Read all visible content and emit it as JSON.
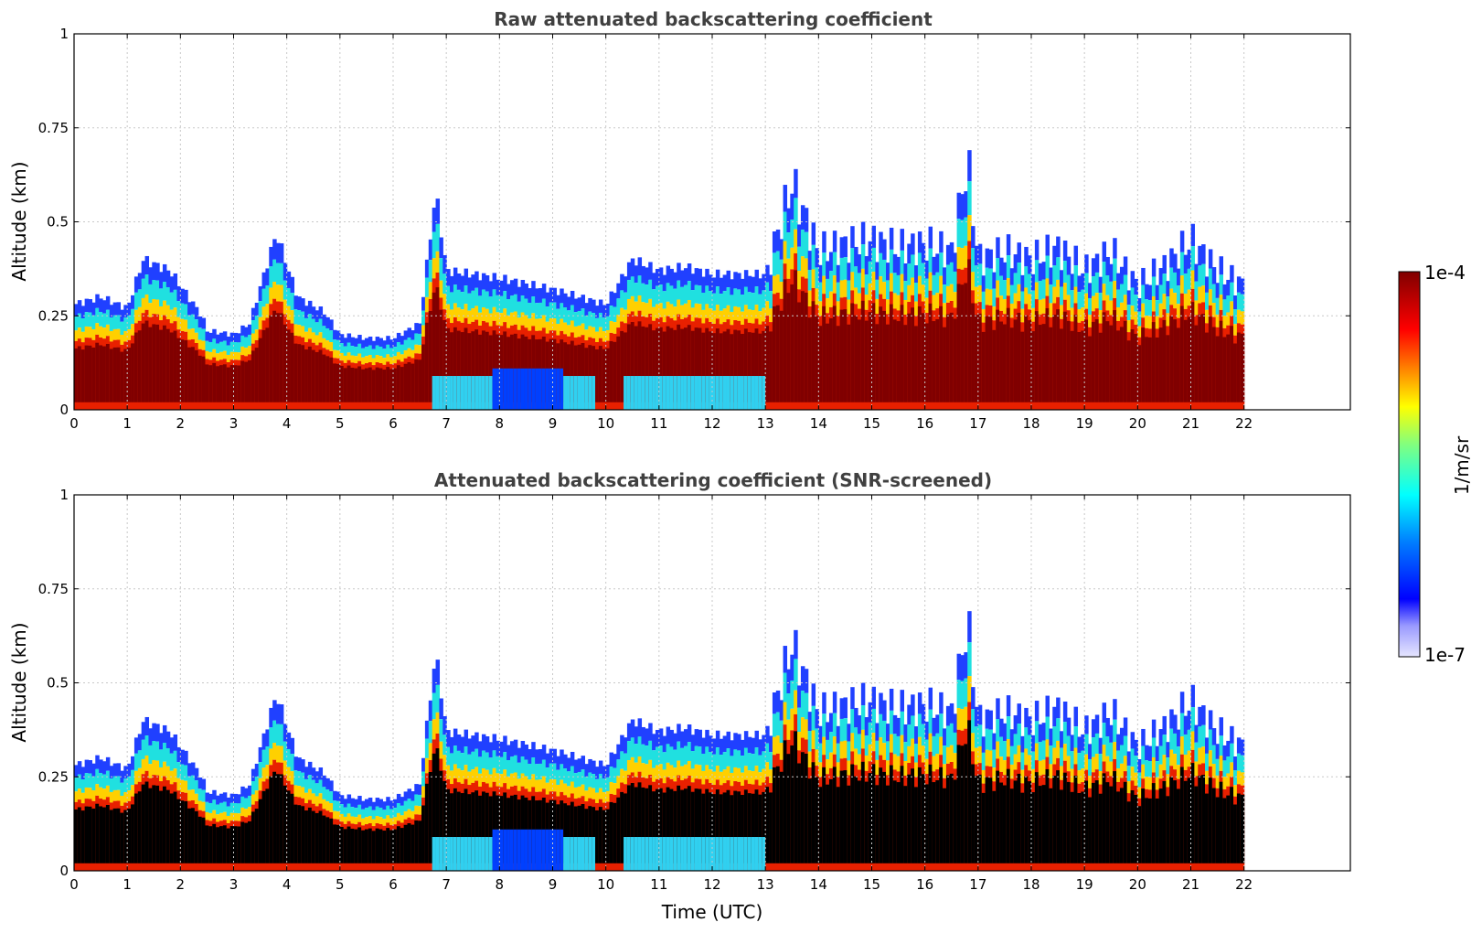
{
  "chart_data": [
    {
      "type": "heatmap",
      "title": "Raw attenuated backscattering coefficient",
      "xlabel": "",
      "ylabel": "Altitude (km)",
      "xlim": [
        0,
        24
      ],
      "ylim": [
        0,
        1
      ],
      "xticks": [
        0,
        1,
        2,
        3,
        4,
        5,
        6,
        7,
        8,
        9,
        10,
        11,
        12,
        13,
        14,
        15,
        16,
        17,
        18,
        19,
        20,
        21,
        22
      ],
      "yticks": [
        0,
        0.25,
        0.5,
        0.75,
        1
      ],
      "ytick_labels": [
        "0",
        "0.25",
        "0.5",
        "0.75",
        "1"
      ],
      "grid": true,
      "data_end_time": 22,
      "layer_top_km": {
        "time": [
          0,
          0.5,
          1,
          1.3,
          1.8,
          2.4,
          2.5,
          3,
          3.3,
          3.8,
          4.2,
          4.7,
          5,
          5.5,
          6,
          6.5,
          6.8,
          7,
          8,
          9,
          10,
          10.5,
          11,
          11.5,
          12,
          13,
          13.5,
          14,
          14.5,
          15,
          15.5,
          16,
          16.5,
          16.8,
          17,
          17.5,
          18,
          18.5,
          19,
          19.5,
          20,
          20.5,
          21,
          21.5,
          22
        ],
        "value": [
          0.28,
          0.3,
          0.27,
          0.4,
          0.37,
          0.25,
          0.21,
          0.2,
          0.23,
          0.47,
          0.3,
          0.26,
          0.2,
          0.19,
          0.19,
          0.23,
          0.58,
          0.37,
          0.35,
          0.32,
          0.28,
          0.4,
          0.37,
          0.38,
          0.36,
          0.36,
          0.6,
          0.42,
          0.44,
          0.45,
          0.43,
          0.44,
          0.42,
          0.66,
          0.4,
          0.42,
          0.4,
          0.43,
          0.37,
          0.42,
          0.33,
          0.38,
          0.45,
          0.37,
          0.33
        ]
      }
    },
    {
      "type": "heatmap",
      "title": "Attenuated backscattering coefficient (SNR-screened)",
      "xlabel": "Time (UTC)",
      "ylabel": "Altitude (km)",
      "xlim": [
        0,
        24
      ],
      "ylim": [
        0,
        1
      ],
      "xticks": [
        0,
        1,
        2,
        3,
        4,
        5,
        6,
        7,
        8,
        9,
        10,
        11,
        12,
        13,
        14,
        15,
        16,
        17,
        18,
        19,
        20,
        21,
        22
      ],
      "yticks": [
        0,
        0.25,
        0.5,
        0.75,
        1
      ],
      "ytick_labels": [
        "0",
        "0.25",
        "0.5",
        "0.75",
        "1"
      ],
      "grid": true,
      "data_end_time": 22,
      "layer_top_km": {
        "time": [
          0,
          0.5,
          1,
          1.3,
          1.8,
          2.4,
          2.5,
          3,
          3.3,
          3.8,
          4.2,
          4.7,
          5,
          5.5,
          6,
          6.5,
          6.8,
          7,
          8,
          9,
          10,
          10.5,
          11,
          11.5,
          12,
          13,
          13.5,
          14,
          14.5,
          15,
          15.5,
          16,
          16.5,
          16.8,
          17,
          17.5,
          18,
          18.5,
          19,
          19.5,
          20,
          20.5,
          21,
          21.5,
          22
        ],
        "value": [
          0.28,
          0.3,
          0.27,
          0.4,
          0.37,
          0.25,
          0.21,
          0.2,
          0.23,
          0.47,
          0.3,
          0.26,
          0.2,
          0.19,
          0.19,
          0.23,
          0.58,
          0.37,
          0.35,
          0.32,
          0.28,
          0.4,
          0.37,
          0.38,
          0.36,
          0.36,
          0.6,
          0.42,
          0.44,
          0.45,
          0.43,
          0.44,
          0.42,
          0.66,
          0.4,
          0.42,
          0.4,
          0.43,
          0.37,
          0.42,
          0.33,
          0.38,
          0.45,
          0.37,
          0.33
        ]
      }
    }
  ],
  "colorbar": {
    "label": "1/m/sr",
    "max_label": "1e-4",
    "min_label": "1e-7",
    "colors": [
      "#e6e6ff",
      "#b3b3ff",
      "#8080ff",
      "#0000ff",
      "#0040ff",
      "#0080ff",
      "#00c0ff",
      "#00ffff",
      "#40ffc0",
      "#80ff80",
      "#c0ff40",
      "#ffff00",
      "#ffc000",
      "#ff8000",
      "#ff4000",
      "#ff0000",
      "#c00000",
      "#800000"
    ]
  }
}
